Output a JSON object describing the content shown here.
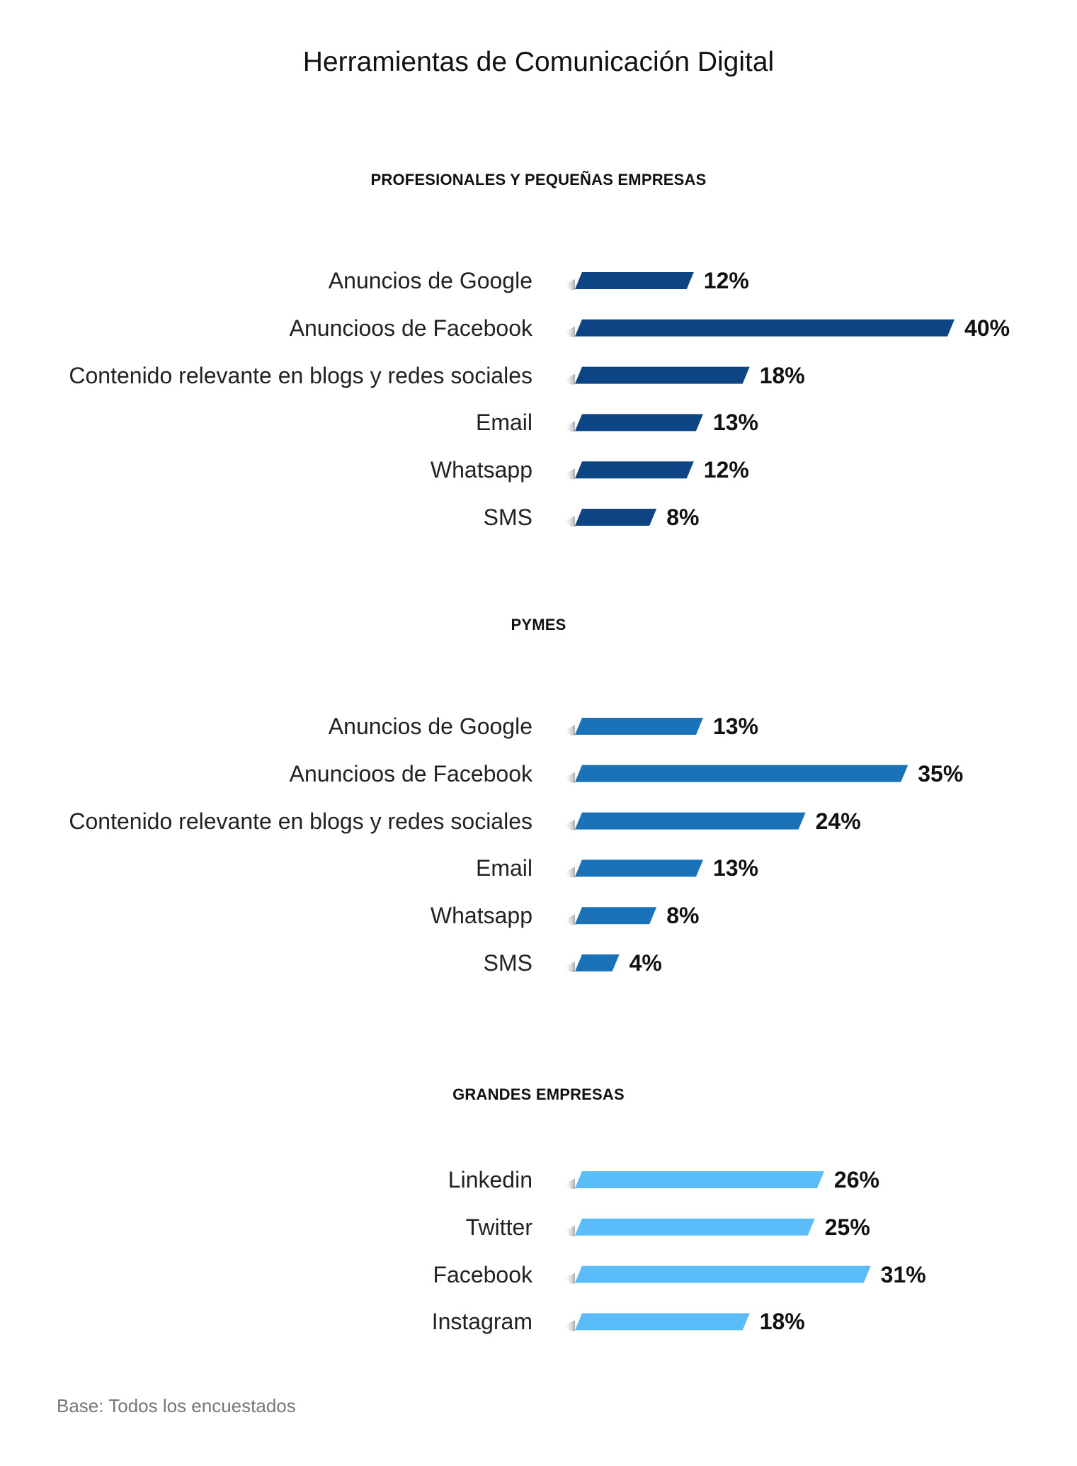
{
  "title": "Herramientas de Comunicación Digital",
  "footnote": "Base: Todos los encuestados",
  "chart_data": [
    {
      "type": "bar",
      "orientation": "horizontal",
      "title": "PROFESIONALES Y PEQUEÑAS EMPRESAS",
      "categories": [
        "Anuncios de Google",
        "Anuncioos de Facebook",
        "Contenido relevante en blogs y redes sociales",
        "Email",
        "Whatsapp",
        "SMS"
      ],
      "values": [
        12,
        40,
        18,
        13,
        12,
        8
      ],
      "value_labels": [
        "12%",
        "40%",
        "18%",
        "13%",
        "12%",
        "8%"
      ],
      "color": "#0d4483",
      "xlim": [
        0,
        40
      ]
    },
    {
      "type": "bar",
      "orientation": "horizontal",
      "title": "PYMES",
      "categories": [
        "Anuncios de Google",
        "Anuncioos de Facebook",
        "Contenido relevante en blogs y redes sociales",
        "Email",
        "Whatsapp",
        "SMS"
      ],
      "values": [
        13,
        35,
        24,
        13,
        8,
        4
      ],
      "value_labels": [
        "13%",
        "35%",
        "24%",
        "13%",
        "8%",
        "4%"
      ],
      "color": "#1a72b8",
      "xlim": [
        0,
        40
      ]
    },
    {
      "type": "bar",
      "orientation": "horizontal",
      "title": "GRANDES EMPRESAS",
      "categories": [
        "Linkedin",
        "Twitter",
        "Facebook",
        "Instagram"
      ],
      "values": [
        26,
        25,
        31,
        18
      ],
      "value_labels": [
        "26%",
        "25%",
        "31%",
        "18%"
      ],
      "color": "#5abcf8",
      "xlim": [
        0,
        40
      ]
    }
  ]
}
